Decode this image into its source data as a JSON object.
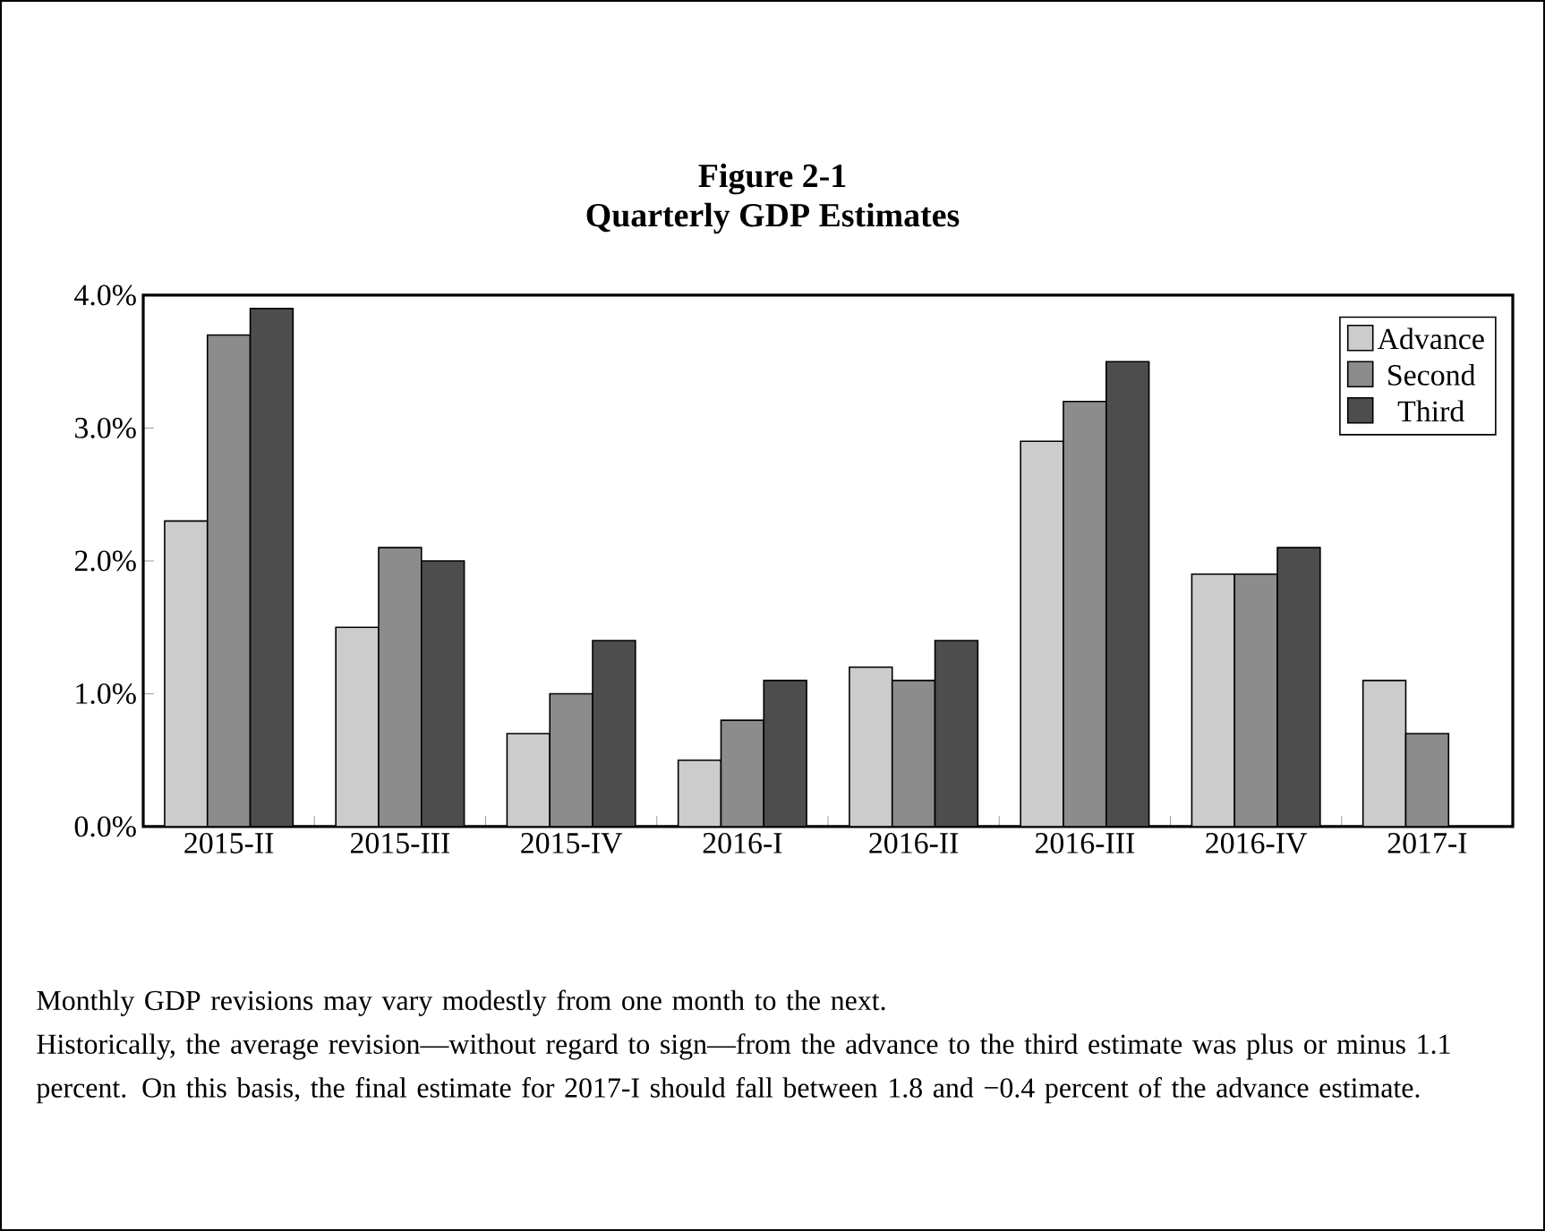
{
  "chart_data": {
    "type": "bar",
    "title": "Figure 2-1",
    "subtitle": "Quarterly GDP Estimates",
    "categories": [
      "2015-II",
      "2015-III",
      "2015-IV",
      "2016-I",
      "2016-II",
      "2016-III",
      "2016-IV",
      "2017-I"
    ],
    "series": [
      {
        "name": "Advance",
        "color": "#cccccc",
        "values": [
          2.3,
          1.5,
          0.7,
          0.5,
          1.2,
          2.9,
          1.9,
          1.1
        ]
      },
      {
        "name": "Second",
        "color": "#8c8c8c",
        "values": [
          3.7,
          2.1,
          1.0,
          0.8,
          1.1,
          3.2,
          1.9,
          0.7
        ]
      },
      {
        "name": "Third",
        "color": "#4d4d4d",
        "values": [
          3.9,
          2.0,
          1.4,
          1.1,
          1.4,
          3.5,
          2.1,
          null
        ]
      }
    ],
    "ylim": [
      0,
      4
    ],
    "yticks": [
      {
        "value": 0,
        "label": "0.0%"
      },
      {
        "value": 1,
        "label": "1.0%"
      },
      {
        "value": 2,
        "label": "2.0%"
      },
      {
        "value": 3,
        "label": "3.0%"
      },
      {
        "value": 4,
        "label": "4.0%"
      }
    ],
    "legend": "top right",
    "grid": false,
    "annotations": [
      "Monthly GDP revisions may vary modestly from one month to the next.",
      "Historically, the average revision—without regard to sign—from the advance to the third estimate was plus or minus 1.1 percent.  On this basis, the final estimate for 2017-I should fall between 1.8 and −0.4 percent of the advance estimate."
    ]
  }
}
